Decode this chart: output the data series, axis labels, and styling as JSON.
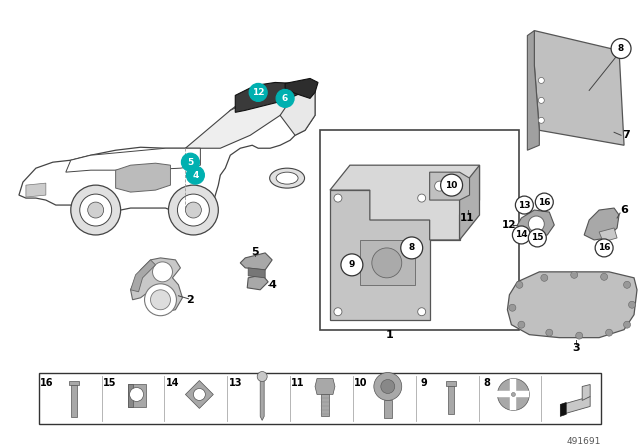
{
  "part_number": "491691",
  "bg": "#ffffff",
  "car_color": "#444444",
  "gray1": "#c8c8c8",
  "gray2": "#a8a8a8",
  "gray3": "#888888",
  "dark": "#333333",
  "teal": "#00b0b0",
  "teal_text": "#ffffff",
  "black": "#111111",
  "fig_w": 6.4,
  "fig_h": 4.48,
  "dpi": 100
}
